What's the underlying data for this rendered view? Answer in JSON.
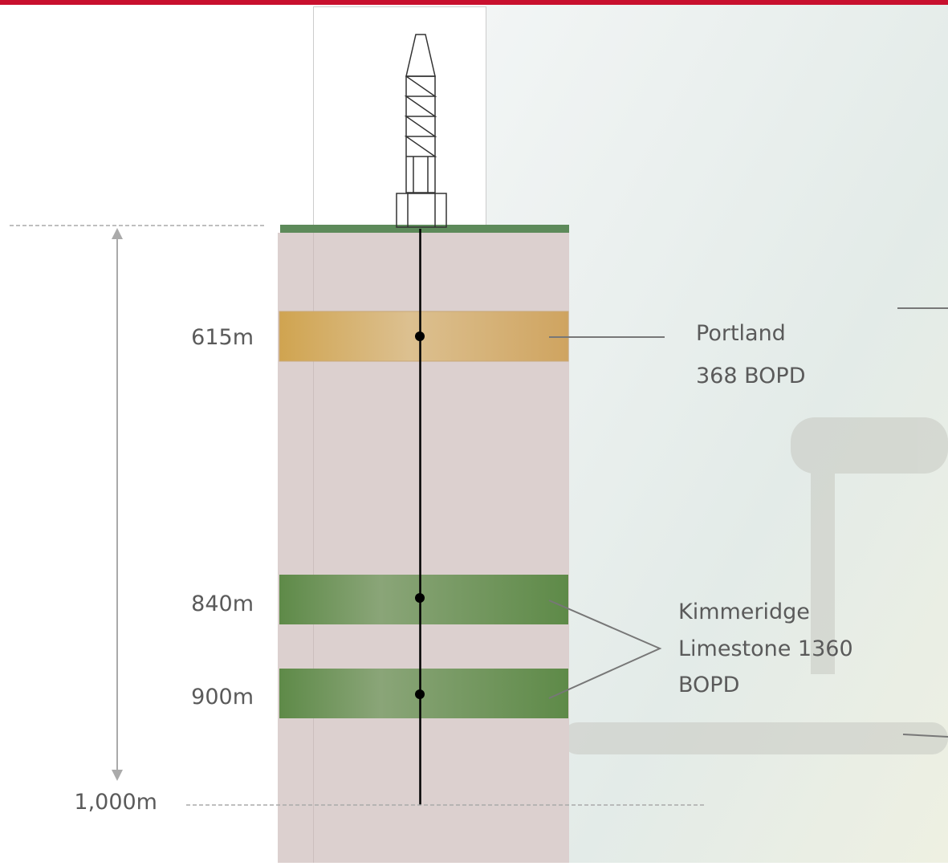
{
  "depth_markers": [
    "615m",
    "840m",
    "900m"
  ],
  "total_depth": "1,000m",
  "zones": [
    {
      "label_lines": [
        "Portland",
        "368 BOPD"
      ]
    },
    {
      "label_lines": [
        "Kimmeridge",
        "Limestone 1360",
        "BOPD"
      ]
    }
  ]
}
